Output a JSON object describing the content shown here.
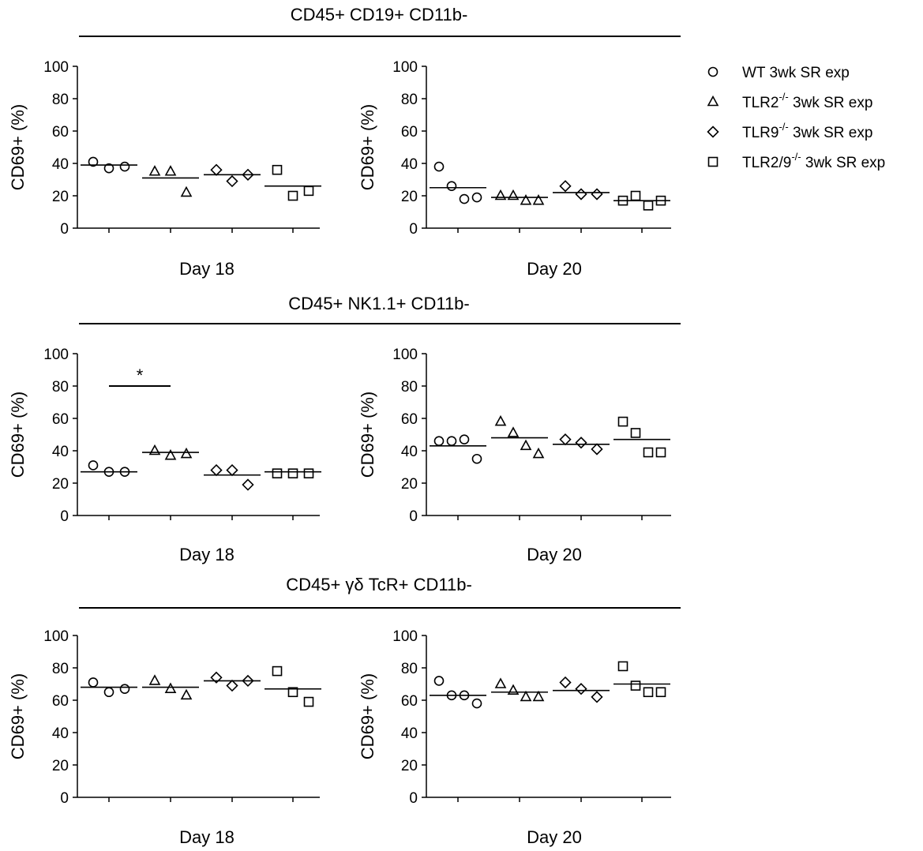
{
  "chart_data": [
    {
      "type": "scatter",
      "group_title": "CD45+ CD19+ CD11b-",
      "xlabel": "Day 18",
      "ylabel": "CD69+ (%)",
      "ylim": [
        0,
        100
      ],
      "yticks": [
        "0",
        "20",
        "40",
        "60",
        "80",
        "100"
      ],
      "series": [
        {
          "name": "WT 3wk SR exp",
          "marker": "circle",
          "values": [
            41,
            37,
            38
          ],
          "mean": 39
        },
        {
          "name": "TLR2-/- 3wk SR exp",
          "marker": "triangle",
          "values": [
            35,
            35,
            22
          ],
          "mean": 31
        },
        {
          "name": "TLR9-/- 3wk SR exp",
          "marker": "diamond",
          "values": [
            36,
            29,
            33
          ],
          "mean": 33
        },
        {
          "name": "TLR2/9-/- 3wk SR exp",
          "marker": "square",
          "values": [
            36,
            20,
            23
          ],
          "mean": 26
        }
      ],
      "significance": []
    },
    {
      "type": "scatter",
      "group_title": "CD45+ CD19+ CD11b-",
      "xlabel": "Day 20",
      "ylabel": "CD69+ (%)",
      "ylim": [
        0,
        100
      ],
      "yticks": [
        "0",
        "20",
        "40",
        "60",
        "80",
        "100"
      ],
      "series": [
        {
          "name": "WT 3wk SR exp",
          "marker": "circle",
          "values": [
            38,
            26,
            18,
            19
          ],
          "mean": 25
        },
        {
          "name": "TLR2-/- 3wk SR exp",
          "marker": "triangle",
          "values": [
            20,
            20,
            17,
            17
          ],
          "mean": 19
        },
        {
          "name": "TLR9-/- 3wk SR exp",
          "marker": "diamond",
          "values": [
            26,
            21,
            21
          ],
          "mean": 22
        },
        {
          "name": "TLR2/9-/- 3wk SR exp",
          "marker": "square",
          "values": [
            17,
            20,
            14,
            17
          ],
          "mean": 17
        }
      ],
      "significance": []
    },
    {
      "type": "scatter",
      "group_title": "CD45+ NK1.1+ CD11b-",
      "xlabel": "Day 18",
      "ylabel": "CD69+ (%)",
      "ylim": [
        0,
        100
      ],
      "yticks": [
        "0",
        "20",
        "40",
        "60",
        "80",
        "100"
      ],
      "series": [
        {
          "name": "WT 3wk SR exp",
          "marker": "circle",
          "values": [
            31,
            27,
            27
          ],
          "mean": 27
        },
        {
          "name": "TLR2-/- 3wk SR exp",
          "marker": "triangle",
          "values": [
            40,
            37,
            38
          ],
          "mean": 39
        },
        {
          "name": "TLR9-/- 3wk SR exp",
          "marker": "diamond",
          "values": [
            28,
            28,
            19
          ],
          "mean": 25
        },
        {
          "name": "TLR2/9-/- 3wk SR exp",
          "marker": "square",
          "values": [
            26,
            26,
            26
          ],
          "mean": 27
        }
      ],
      "significance": [
        {
          "from": 0,
          "to": 1,
          "y": 80,
          "label": "*"
        }
      ]
    },
    {
      "type": "scatter",
      "group_title": "CD45+ NK1.1+ CD11b-",
      "xlabel": "Day 20",
      "ylabel": "CD69+ (%)",
      "ylim": [
        0,
        100
      ],
      "yticks": [
        "0",
        "20",
        "40",
        "60",
        "80",
        "100"
      ],
      "series": [
        {
          "name": "WT 3wk SR exp",
          "marker": "circle",
          "values": [
            46,
            46,
            47,
            35
          ],
          "mean": 43
        },
        {
          "name": "TLR2-/- 3wk SR exp",
          "marker": "triangle",
          "values": [
            58,
            51,
            43,
            38
          ],
          "mean": 48
        },
        {
          "name": "TLR9-/- 3wk SR exp",
          "marker": "diamond",
          "values": [
            47,
            45,
            41
          ],
          "mean": 44
        },
        {
          "name": "TLR2/9-/- 3wk SR exp",
          "marker": "square",
          "values": [
            58,
            51,
            39,
            39
          ],
          "mean": 47
        }
      ],
      "significance": []
    },
    {
      "type": "scatter",
      "group_title": "CD45+ γδ TcR+ CD11b-",
      "xlabel": "Day 18",
      "ylabel": "CD69+ (%)",
      "ylim": [
        0,
        100
      ],
      "yticks": [
        "0",
        "20",
        "40",
        "60",
        "80",
        "100"
      ],
      "series": [
        {
          "name": "WT 3wk SR exp",
          "marker": "circle",
          "values": [
            71,
            65,
            67
          ],
          "mean": 68
        },
        {
          "name": "TLR2-/- 3wk SR exp",
          "marker": "triangle",
          "values": [
            72,
            67,
            63
          ],
          "mean": 68
        },
        {
          "name": "TLR9-/- 3wk SR exp",
          "marker": "diamond",
          "values": [
            74,
            69,
            72
          ],
          "mean": 72
        },
        {
          "name": "TLR2/9-/- 3wk SR exp",
          "marker": "square",
          "values": [
            78,
            65,
            59
          ],
          "mean": 67
        }
      ],
      "significance": []
    },
    {
      "type": "scatter",
      "group_title": "CD45+ γδ TcR+ CD11b-",
      "xlabel": "Day 20",
      "ylabel": "CD69+ (%)",
      "ylim": [
        0,
        100
      ],
      "yticks": [
        "0",
        "20",
        "40",
        "60",
        "80",
        "100"
      ],
      "series": [
        {
          "name": "WT 3wk SR exp",
          "marker": "circle",
          "values": [
            72,
            63,
            63,
            58
          ],
          "mean": 63
        },
        {
          "name": "TLR2-/- 3wk SR exp",
          "marker": "triangle",
          "values": [
            70,
            66,
            62,
            62
          ],
          "mean": 65
        },
        {
          "name": "TLR9-/- 3wk SR exp",
          "marker": "diamond",
          "values": [
            71,
            67,
            62
          ],
          "mean": 66
        },
        {
          "name": "TLR2/9-/- 3wk SR exp",
          "marker": "square",
          "values": [
            81,
            69,
            65,
            65
          ],
          "mean": 70
        }
      ],
      "significance": []
    }
  ],
  "group_titles": [
    "CD45+ CD19+ CD11b-",
    "CD45+ NK1.1+ CD11b-",
    "CD45+ γδ TcR+ CD11b-"
  ],
  "legend": {
    "placement": "top-right",
    "items": [
      {
        "marker": "circle",
        "prefix": "WT",
        "sup": "",
        "suffix": " 3wk SR exp"
      },
      {
        "marker": "triangle",
        "prefix": "TLR2",
        "sup": "-/-",
        "suffix": " 3wk SR exp"
      },
      {
        "marker": "diamond",
        "prefix": "TLR9",
        "sup": "-/-",
        "suffix": " 3wk SR exp"
      },
      {
        "marker": "square",
        "prefix": "TLR2/9",
        "sup": "-/-",
        "suffix": " 3wk SR exp"
      }
    ]
  }
}
